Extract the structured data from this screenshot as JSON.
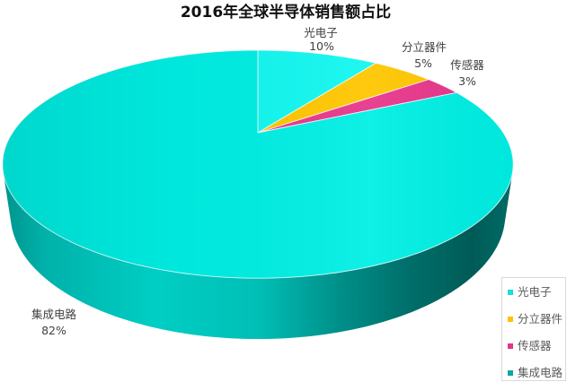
{
  "chart_data": {
    "type": "pie",
    "view": "3d",
    "title": "2016年全球半导体销售额占比",
    "categories": [
      "光电子",
      "分立器件",
      "传感器",
      "集成电路"
    ],
    "values": [
      10,
      5,
      3,
      82
    ],
    "data_labels": [
      "10%",
      "5%",
      "3%",
      "82%"
    ],
    "colors": [
      "#1FDCD8",
      "#FFC000",
      "#E2348A",
      "#0EA8A2"
    ],
    "face_colors": [
      "#12F7F0",
      "#FFC600",
      "#E8368C",
      "#00EFE4"
    ],
    "legend": {
      "position": "bottom-right"
    }
  }
}
